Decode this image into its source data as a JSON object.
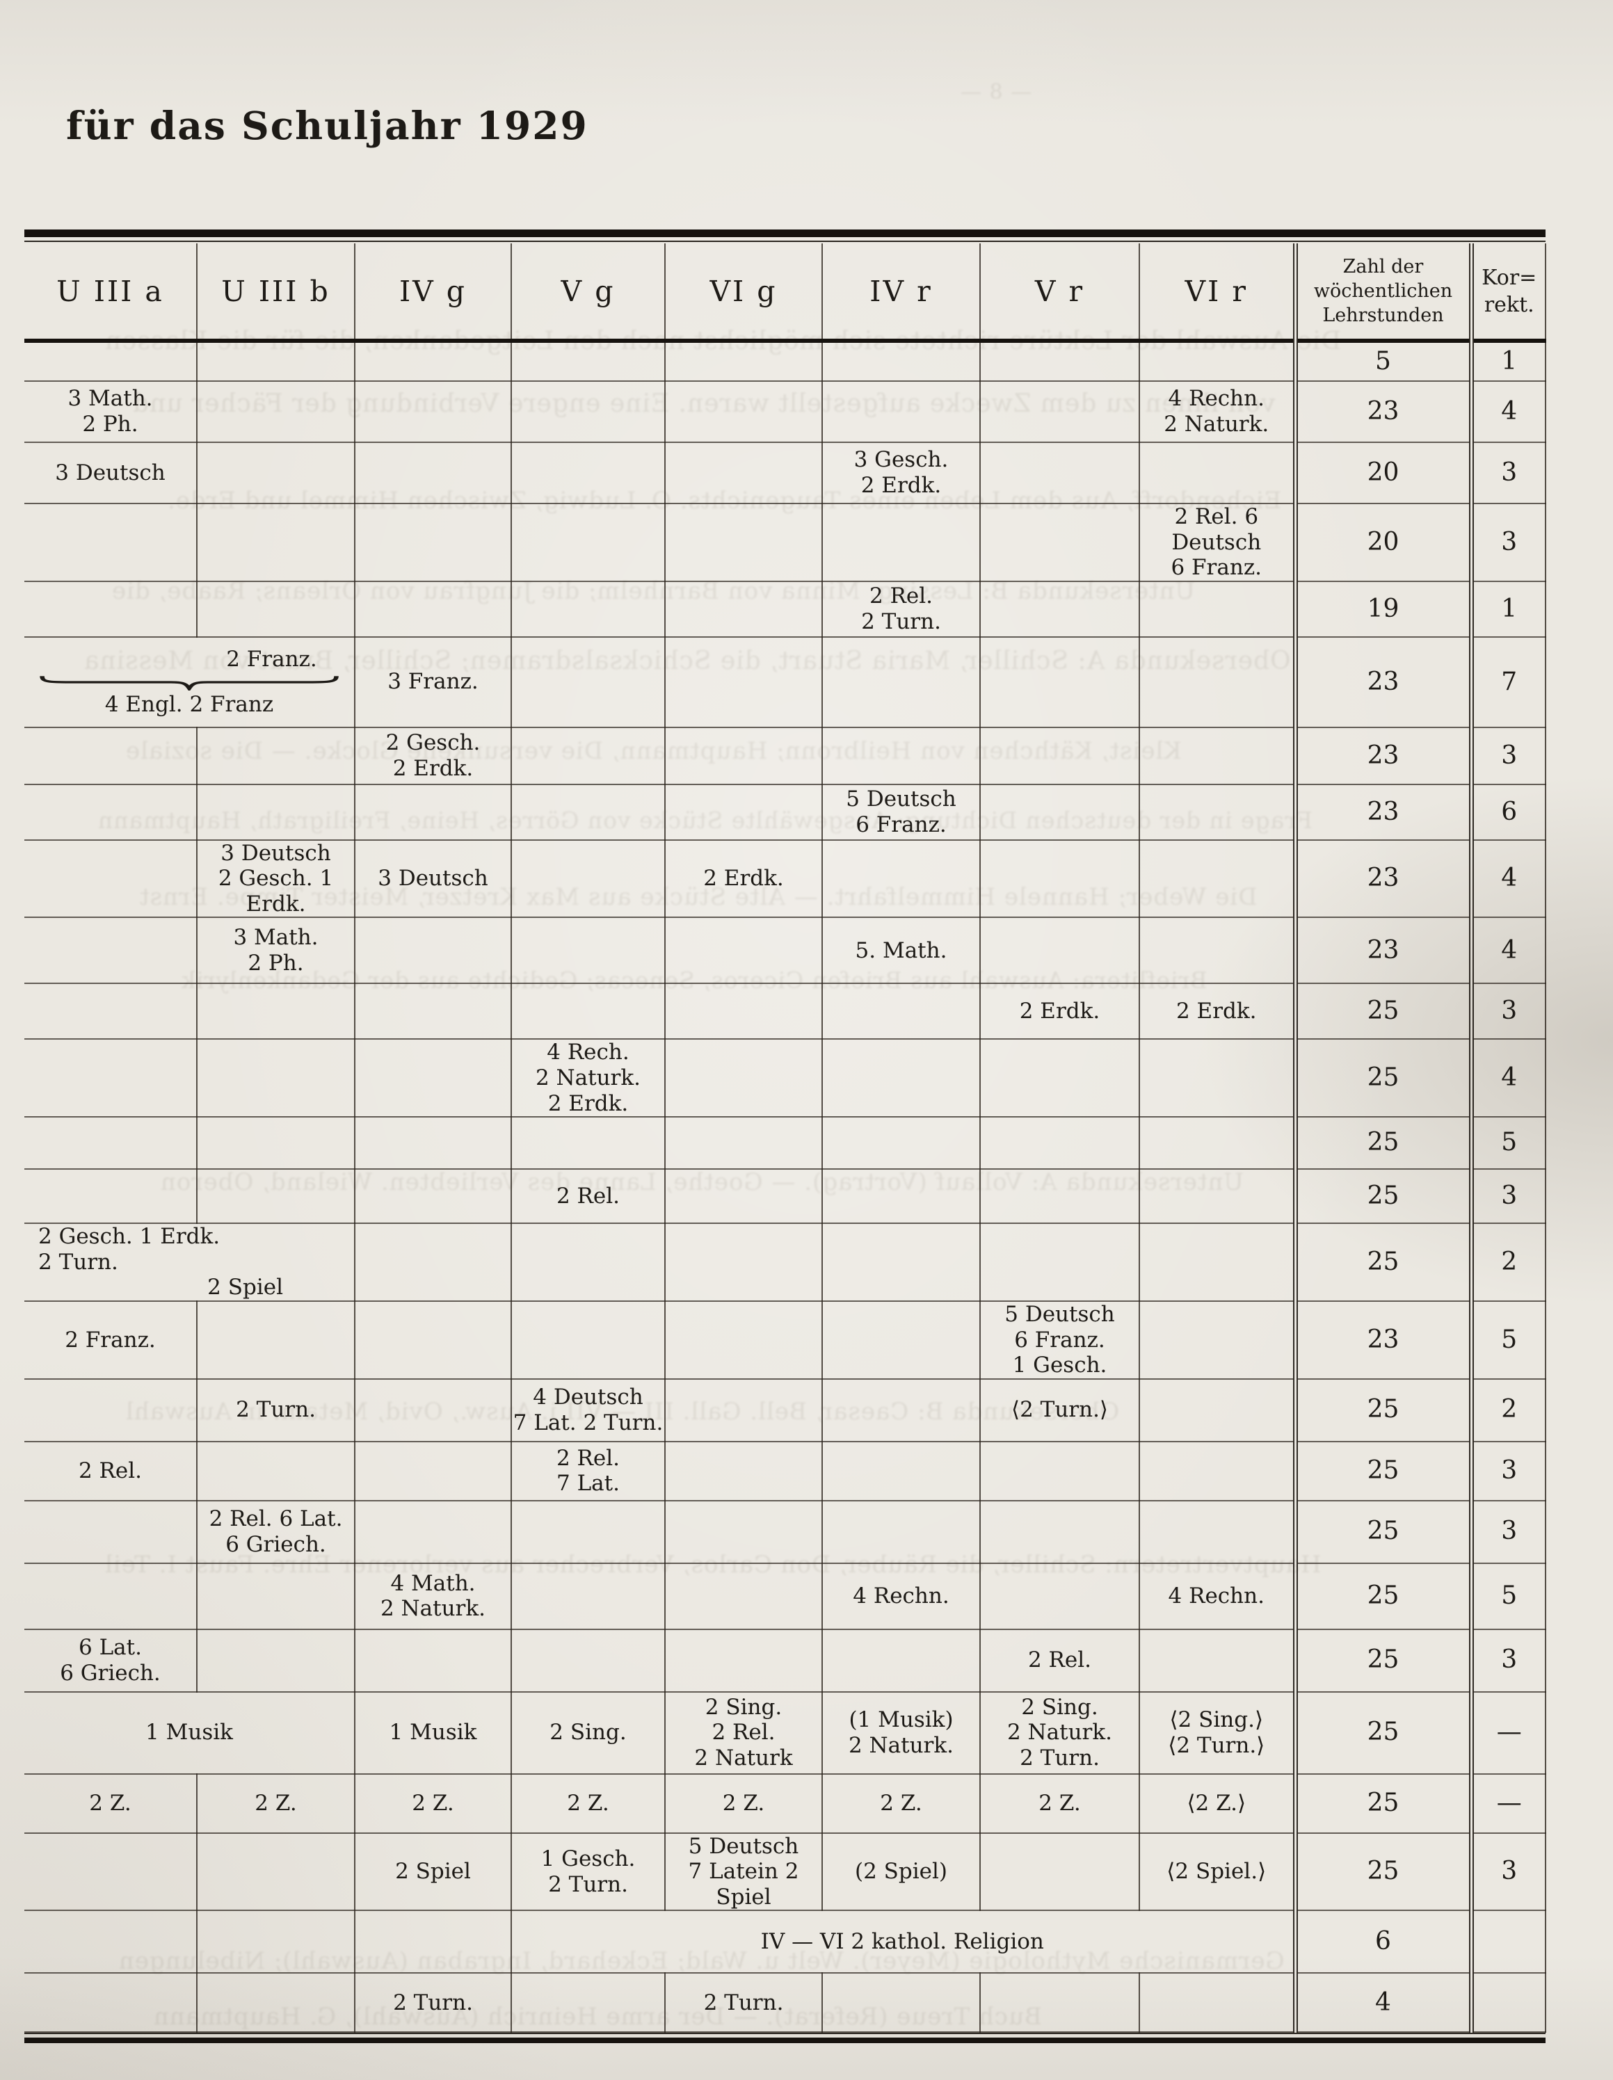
{
  "page": {
    "title": "für das Schuljahr 1929"
  },
  "table": {
    "headers": [
      "U III a",
      "U III b",
      "IV g",
      "V g",
      "VI g",
      "IV r",
      "V r",
      "VI r"
    ],
    "hours_header": [
      "Zahl der",
      "wöchentlichen",
      "Lehrstunden"
    ],
    "korrekt_header": [
      "Kor=",
      "rekt."
    ],
    "rows": [
      {
        "cells": [],
        "hours": "5",
        "korrekt": "1"
      },
      {
        "cells": [
          {
            "col": 0,
            "lines": [
              "3 Math.",
              "2 Ph."
            ]
          },
          {
            "col": 7,
            "lines": [
              "4 Rechn.",
              "2 Naturk."
            ]
          }
        ],
        "hours": "23",
        "korrekt": "4"
      },
      {
        "cells": [
          {
            "col": 0,
            "lines": [
              "3 Deutsch"
            ]
          },
          {
            "col": 5,
            "lines": [
              "3 Gesch.",
              "2 Erdk."
            ]
          }
        ],
        "hours": "20",
        "korrekt": "3"
      },
      {
        "cells": [
          {
            "col": 7,
            "lines": [
              "2 Rel. 6 Deutsch",
              "6 Franz."
            ]
          }
        ],
        "hours": "20",
        "korrekt": "3"
      },
      {
        "cells": [
          {
            "col": 5,
            "lines": [
              "2 Rel.",
              "2 Turn."
            ]
          }
        ],
        "hours": "19",
        "korrekt": "1"
      },
      {
        "cells": [
          {
            "col": 0,
            "span": 2,
            "brace": {
              "top": "2 Franz.",
              "label": "4 Engl. 2 Franz"
            }
          },
          {
            "col": 2,
            "lines": [
              "3 Franz."
            ]
          }
        ],
        "hours": "23",
        "korrekt": "7"
      },
      {
        "cells": [
          {
            "col": 2,
            "lines": [
              "2 Gesch.",
              "2 Erdk."
            ]
          }
        ],
        "hours": "23",
        "korrekt": "3"
      },
      {
        "cells": [
          {
            "col": 5,
            "lines": [
              "5 Deutsch",
              "6 Franz."
            ]
          }
        ],
        "hours": "23",
        "korrekt": "6"
      },
      {
        "cells": [
          {
            "col": 1,
            "lines": [
              "3 Deutsch",
              "2 Gesch. 1 Erdk."
            ]
          },
          {
            "col": 2,
            "lines": [
              "3 Deutsch"
            ]
          },
          {
            "col": 4,
            "lines": [
              "2 Erdk."
            ]
          }
        ],
        "hours": "23",
        "korrekt": "4"
      },
      {
        "cells": [
          {
            "col": 1,
            "lines": [
              "3 Math.",
              "2 Ph."
            ]
          },
          {
            "col": 5,
            "lines": [
              "5. Math."
            ]
          }
        ],
        "hours": "23",
        "korrekt": "4"
      },
      {
        "cells": [
          {
            "col": 6,
            "lines": [
              "2 Erdk."
            ]
          },
          {
            "col": 7,
            "lines": [
              "2 Erdk."
            ]
          }
        ],
        "hours": "25",
        "korrekt": "3"
      },
      {
        "cells": [
          {
            "col": 3,
            "lines": [
              "4 Rech.",
              "2 Naturk.",
              "2 Erdk."
            ]
          }
        ],
        "hours": "25",
        "korrekt": "4"
      },
      {
        "cells": [],
        "hours": "25",
        "korrekt": "5"
      },
      {
        "cells": [
          {
            "col": 3,
            "lines": [
              "2 Rel."
            ]
          }
        ],
        "hours": "25",
        "korrekt": "3"
      },
      {
        "cells": [
          {
            "col": 0,
            "span": 2,
            "align": "left",
            "lines": [
              "2 Gesch. 1 Erdk.",
              "2 Turn."
            ],
            "extra": "2 Spiel"
          }
        ],
        "hours": "25",
        "korrekt": "2"
      },
      {
        "cells": [
          {
            "col": 0,
            "lines": [
              "2 Franz."
            ]
          },
          {
            "col": 6,
            "lines": [
              "5 Deutsch",
              "6 Franz.",
              "1 Gesch."
            ]
          }
        ],
        "hours": "23",
        "korrekt": "5"
      },
      {
        "cells": [
          {
            "col": 1,
            "lines": [
              "2 Turn."
            ]
          },
          {
            "col": 3,
            "lines": [
              "4 Deutsch",
              "7 Lat. 2 Turn."
            ]
          },
          {
            "col": 6,
            "lines": [
              "⟨2 Turn.⟩"
            ]
          }
        ],
        "hours": "25",
        "korrekt": "2"
      },
      {
        "cells": [
          {
            "col": 0,
            "lines": [
              "2 Rel."
            ]
          },
          {
            "col": 3,
            "lines": [
              "2 Rel.",
              "7 Lat."
            ]
          }
        ],
        "hours": "25",
        "korrekt": "3"
      },
      {
        "cells": [
          {
            "col": 1,
            "lines": [
              "2 Rel. 6 Lat.",
              "6 Griech."
            ]
          }
        ],
        "hours": "25",
        "korrekt": "3"
      },
      {
        "cells": [
          {
            "col": 2,
            "lines": [
              "4 Math.",
              "2 Naturk."
            ]
          },
          {
            "col": 5,
            "lines": [
              "4 Rechn."
            ]
          },
          {
            "col": 7,
            "lines": [
              "4 Rechn."
            ]
          }
        ],
        "hours": "25",
        "korrekt": "5"
      },
      {
        "cells": [
          {
            "col": 0,
            "lines": [
              "6 Lat.",
              "6 Griech."
            ]
          },
          {
            "col": 6,
            "lines": [
              "2 Rel."
            ]
          }
        ],
        "hours": "25",
        "korrekt": "3"
      },
      {
        "cells": [
          {
            "col": 0,
            "span": 2,
            "lines": [
              "1 Musik"
            ]
          },
          {
            "col": 2,
            "lines": [
              "1 Musik"
            ]
          },
          {
            "col": 3,
            "lines": [
              "2 Sing."
            ]
          },
          {
            "col": 4,
            "lines": [
              "2 Sing.",
              "2 Rel.",
              "2 Naturk"
            ]
          },
          {
            "col": 5,
            "lines": [
              "(1 Musik)",
              "2 Naturk."
            ]
          },
          {
            "col": 6,
            "lines": [
              "2 Sing.",
              "2 Naturk.",
              "2 Turn."
            ]
          },
          {
            "col": 7,
            "lines": [
              "⟨2 Sing.⟩",
              "⟨2 Turn.⟩"
            ]
          }
        ],
        "hours": "25",
        "korrekt": "—"
      },
      {
        "cells": [
          {
            "col": 0,
            "lines": [
              "2 Z."
            ]
          },
          {
            "col": 1,
            "lines": [
              "2 Z."
            ]
          },
          {
            "col": 2,
            "lines": [
              "2 Z."
            ]
          },
          {
            "col": 3,
            "lines": [
              "2 Z."
            ]
          },
          {
            "col": 4,
            "lines": [
              "2 Z."
            ]
          },
          {
            "col": 5,
            "lines": [
              "2 Z."
            ]
          },
          {
            "col": 6,
            "lines": [
              "2 Z."
            ]
          },
          {
            "col": 7,
            "lines": [
              "⟨2 Z.⟩"
            ]
          }
        ],
        "hours": "25",
        "korrekt": "—"
      },
      {
        "cells": [
          {
            "col": 2,
            "lines": [
              "2 Spiel"
            ]
          },
          {
            "col": 3,
            "lines": [
              "1 Gesch.",
              "2 Turn."
            ]
          },
          {
            "col": 4,
            "lines": [
              "5 Deutsch",
              "7 Latein 2 Spiel"
            ]
          },
          {
            "col": 5,
            "lines": [
              "(2 Spiel)"
            ]
          },
          {
            "col": 7,
            "lines": [
              "⟨2 Spiel.⟩"
            ]
          }
        ],
        "hours": "25",
        "korrekt": "3"
      },
      {
        "cells": [
          {
            "col": 3,
            "span": 5,
            "lines": [
              "IV — VI 2 kathol. Religion"
            ]
          }
        ],
        "hours": "6",
        "korrekt": ""
      },
      {
        "cells": [
          {
            "col": 2,
            "lines": [
              "2 Turn."
            ]
          },
          {
            "col": 4,
            "lines": [
              "2 Turn."
            ]
          }
        ],
        "hours": "4",
        "korrekt": ""
      }
    ]
  },
  "ghost_fragments": [
    "Die Auswahl der Lektüre richtete sich möglichst nach den Leitgedanken, die für die Klassen",
    "von ihnen zu dem Zwecke aufgestellt waren. Eine engere Verbindung der Fächer und",
    "Eichendorff, Aus dem Leben eines Taugenichts. O. Ludwig, Zwischen Himmel und Erde.",
    "Untersekunda B: Lessing, Minna von Barnhelm; die Jungfrau von Orleans; Raabe, die",
    "Obersekunda A: Schiller, Maria Stuart, die Schicksalsdramen; Schiller, Braut von Messina",
    "Kleist, Käthchen von Heilbronn; Hauptmann, Die versunkene Glocke. — Die soziale",
    "Frage in der deutschen Dichtung: Ausgewählte Stücke von Görres, Heine, Freiligrath, Hauptmann",
    "Die Weber; Hannele Himmelfahrt. — Alte Stücke aus Max Kretzer, Meister Timpe. Ernst",
    "Brieflitera: Auswahl aus Briefen Ciceros, Senecas; Gedichte aus der Gedankenlyrik",
    "Untersekunda A: Vollauf (Vortrag). — Goethe, Lanne des Verliebten. Wieland, Oberon",
    "Obersekunda B: Caesar, Bell. Gall. III — VII i. Ausw., Ovid, Metam. in Auswahl",
    "Hauptvertretern: Schiller, die Räuber, Don Carlos, Verbrecher aus verlorener Ehre. Faust I. Teil",
    "Germanische Mythologie (Meyer). Welt u. Wald; Eckehard, Ingraban (Auswahl); Nibelungen",
    "Buch Treue (Referat). — Der arme Heinrich (Auswahl), G. Hauptmann",
    "— 8 —"
  ]
}
